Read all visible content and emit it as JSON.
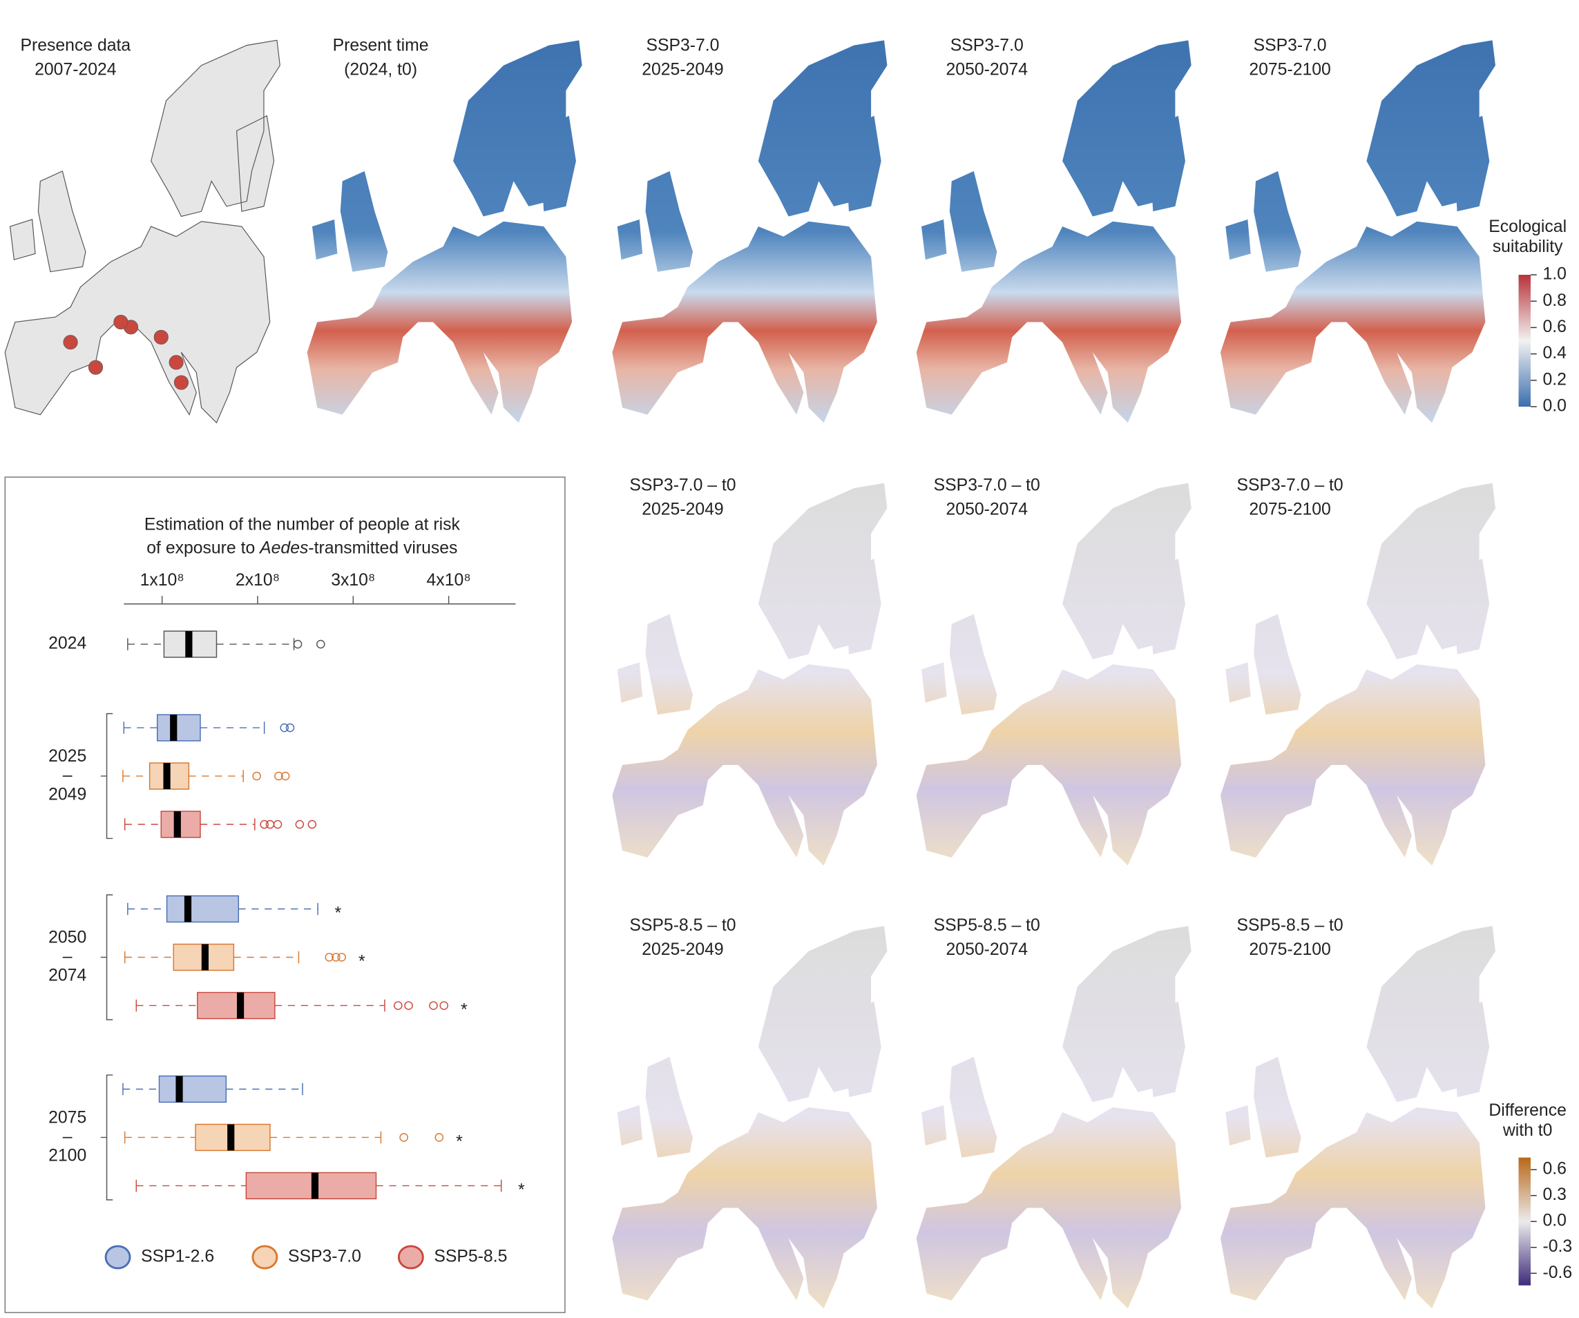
{
  "maps": [
    {
      "title": [
        "Presence data",
        "2007-2024"
      ]
    },
    {
      "title": [
        "Present time",
        "(2024, t0)"
      ]
    },
    {
      "title": [
        "SSP3-7.0",
        "2025-2049"
      ]
    },
    {
      "title": [
        "SSP3-7.0",
        "2050-2074"
      ]
    },
    {
      "title": [
        "SSP3-7.0",
        "2075-2100"
      ]
    },
    {
      "title": [
        "SSP3-7.0 – t0",
        "2025-2049"
      ]
    },
    {
      "title": [
        "SSP3-7.0 – t0",
        "2050-2074"
      ]
    },
    {
      "title": [
        "SSP3-7.0 – t0",
        "2075-2100"
      ]
    },
    {
      "title": [
        "SSP5-8.5 – t0",
        "2025-2049"
      ]
    },
    {
      "title": [
        "SSP5-8.5 – t0",
        "2050-2074"
      ]
    },
    {
      "title": [
        "SSP5-8.5 – t0",
        "2075-2100"
      ]
    }
  ],
  "colorbars": [
    {
      "title": [
        "Ecological",
        "suitability"
      ],
      "ylim": [
        0,
        1
      ],
      "yticks": [
        {
          "value": 0,
          "label": "0.0"
        },
        0.2,
        0.4,
        0.6,
        0.8,
        {
          "value": 1,
          "label": "1.0"
        }
      ],
      "colors": [
        "#3b6eae",
        "#f2f2f2",
        "#b8333a"
      ]
    },
    {
      "title": [
        "Difference",
        "with t0"
      ],
      "ylim": [
        -0.74,
        0.74
      ],
      "yticks": [
        -0.6,
        -0.3,
        {
          "value": 0,
          "label": "0.0"
        },
        0.3,
        0.6
      ],
      "colors": [
        "#3f2a7a",
        "#ebebeb",
        "#b8681a"
      ]
    }
  ],
  "chart_data": {
    "type": "boxplot",
    "title": {
      "line1": "Estimation of the number of people at risk",
      "line2": [
        "of exposure to ",
        "Aedes",
        "-transmitted viruses"
      ]
    },
    "xlim": [
      60000000,
      470000000
    ],
    "xticks": [
      {
        "value": 100000000,
        "label": "1x10⁸"
      },
      {
        "value": 200000000,
        "label": "2x10⁸"
      },
      {
        "value": 300000000,
        "label": "3x10⁸"
      },
      {
        "value": 400000000,
        "label": "4x10⁸"
      }
    ],
    "baseline": {
      "label": "2024",
      "color": "#e6e6e6",
      "edge": "#555555",
      "box": {
        "whislo": 64000000,
        "q1": 102000000,
        "med": 128000000,
        "q3": 157000000,
        "whishi": 238000000,
        "fliers": [
          242000000,
          266000000
        ]
      }
    },
    "periods": [
      [
        "2025",
        "–",
        "2049"
      ],
      [
        "2050",
        "–",
        "2074"
      ],
      [
        "2075",
        "–",
        "2100"
      ]
    ],
    "series": [
      {
        "name": "SSP1-2.6",
        "color": "#b8c6e4",
        "edge": "#4a6fb5",
        "boxes": [
          {
            "whislo": 60000000,
            "q1": 95000000,
            "med": 112000000,
            "q3": 140000000,
            "whishi": 207000000,
            "fliers": [
              228000000,
              234000000
            ]
          },
          {
            "whislo": 64000000,
            "q1": 105000000,
            "med": 127000000,
            "q3": 180000000,
            "whishi": 263000000,
            "fliers": [],
            "annotation": "*"
          },
          {
            "whislo": 59000000,
            "q1": 97000000,
            "med": 118000000,
            "q3": 167000000,
            "whishi": 247000000,
            "fliers": []
          }
        ]
      },
      {
        "name": "SSP3-7.0",
        "color": "#f6d4b6",
        "edge": "#d9782e",
        "boxes": [
          {
            "whislo": 59000000,
            "q1": 87000000,
            "med": 105000000,
            "q3": 128000000,
            "whishi": 185000000,
            "fliers": [
              199000000,
              222000000,
              229000000
            ]
          },
          {
            "whislo": 61000000,
            "q1": 112000000,
            "med": 145000000,
            "q3": 175000000,
            "whishi": 243000000,
            "fliers": [
              275000000,
              282000000,
              288000000
            ],
            "annotation": "*"
          },
          {
            "whislo": 61000000,
            "q1": 135000000,
            "med": 172000000,
            "q3": 213000000,
            "whishi": 329000000,
            "fliers": [
              353000000,
              390000000
            ],
            "annotation": "*"
          }
        ]
      },
      {
        "name": "SSP5-8.5",
        "color": "#ebaca7",
        "edge": "#c9483e",
        "boxes": [
          {
            "whislo": 61000000,
            "q1": 99000000,
            "med": 116000000,
            "q3": 140000000,
            "whishi": 197000000,
            "fliers": [
              207000000,
              213000000,
              221000000,
              244000000,
              257000000
            ]
          },
          {
            "whislo": 73000000,
            "q1": 137000000,
            "med": 182000000,
            "q3": 218000000,
            "whishi": 333000000,
            "fliers": [
              347000000,
              358000000,
              384000000,
              395000000
            ],
            "annotation": "*"
          },
          {
            "whislo": 73000000,
            "q1": 188000000,
            "med": 260000000,
            "q3": 324000000,
            "whishi": 455000000,
            "fliers": [],
            "annotation": "*"
          }
        ]
      }
    ]
  }
}
